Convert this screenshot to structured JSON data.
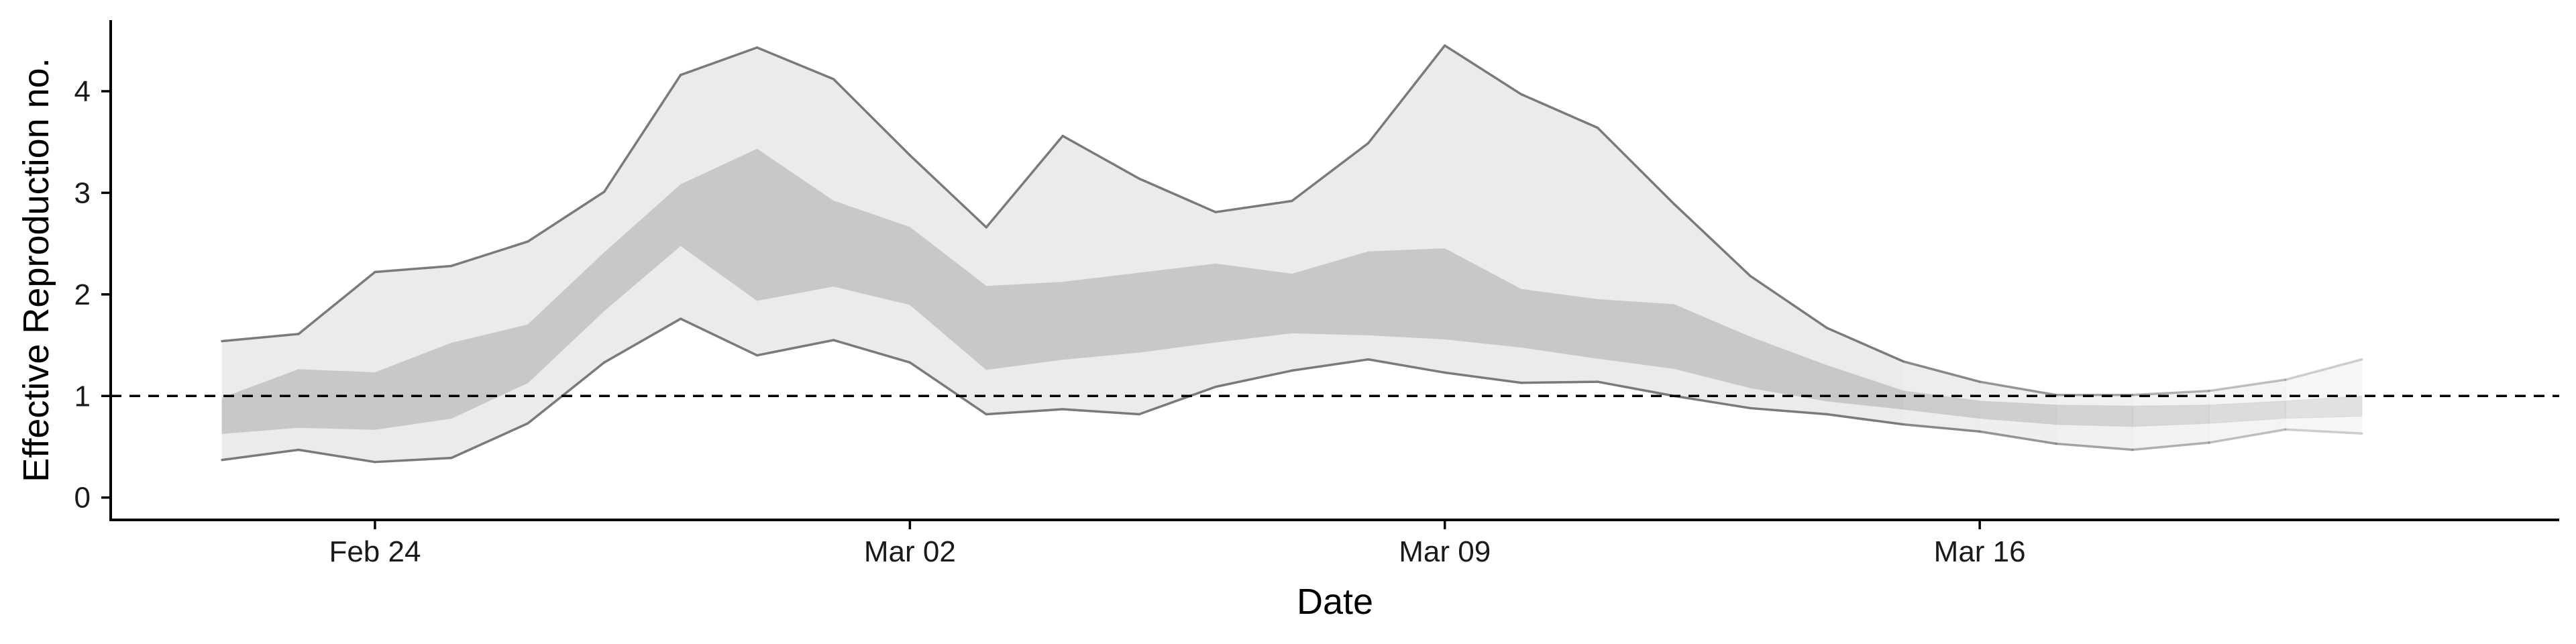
{
  "chart_data": {
    "type": "area",
    "xlabel": "Date",
    "ylabel": "Effective Reproduction no.",
    "x_ticks": [
      "Feb 24",
      "Mar 02",
      "Mar 09",
      "Mar 16"
    ],
    "y_ticks": [
      0,
      1,
      2,
      3,
      4
    ],
    "ylim": [
      -0.22,
      4.7
    ],
    "xlim": [
      "2020-02-20T13:00",
      "2020-03-23T14:00"
    ],
    "reference_line": {
      "y": 1,
      "style": "dashed"
    },
    "dates": [
      "2020-02-22",
      "2020-02-23",
      "2020-02-24",
      "2020-02-25",
      "2020-02-26",
      "2020-02-27",
      "2020-02-28",
      "2020-02-29",
      "2020-03-01",
      "2020-03-02",
      "2020-03-03",
      "2020-03-04",
      "2020-03-05",
      "2020-03-06",
      "2020-03-07",
      "2020-03-08",
      "2020-03-09",
      "2020-03-10",
      "2020-03-11",
      "2020-03-12",
      "2020-03-13",
      "2020-03-14",
      "2020-03-15",
      "2020-03-16",
      "2020-03-17",
      "2020-03-18",
      "2020-03-19",
      "2020-03-20",
      "2020-03-21"
    ],
    "series": [
      {
        "band": "outer",
        "lower": [
          0.37,
          0.47,
          0.35,
          0.39,
          0.73,
          1.33,
          1.76,
          1.4,
          1.55,
          1.33,
          0.82,
          0.87,
          0.82,
          1.09,
          1.25,
          1.36,
          1.23,
          1.13,
          1.14,
          1.0,
          0.88,
          0.82,
          0.72,
          0.65,
          0.53,
          0.47,
          0.54,
          0.67,
          0.63
        ],
        "upper": [
          1.54,
          1.61,
          2.22,
          2.28,
          2.52,
          3.01,
          4.16,
          4.43,
          4.12,
          3.37,
          2.66,
          3.56,
          3.14,
          2.81,
          2.92,
          3.49,
          4.45,
          3.97,
          3.64,
          2.89,
          2.18,
          1.67,
          1.34,
          1.14,
          1.01,
          1.01,
          1.05,
          1.16,
          1.36
        ]
      },
      {
        "band": "inner",
        "lower": [
          0.63,
          0.69,
          0.67,
          0.78,
          1.13,
          1.84,
          2.48,
          1.94,
          2.08,
          1.9,
          1.26,
          1.36,
          1.43,
          1.53,
          1.62,
          1.6,
          1.56,
          1.48,
          1.37,
          1.27,
          1.08,
          0.95,
          0.87,
          0.78,
          0.72,
          0.7,
          0.73,
          0.78,
          0.8
        ],
        "upper": [
          0.98,
          1.26,
          1.23,
          1.52,
          1.7,
          2.41,
          3.08,
          3.43,
          2.92,
          2.66,
          2.08,
          2.12,
          2.21,
          2.3,
          2.2,
          2.42,
          2.45,
          2.05,
          1.95,
          1.9,
          1.58,
          1.3,
          1.05,
          0.95,
          0.91,
          0.9,
          0.91,
          0.95,
          1.0
        ]
      }
    ],
    "colors": {
      "outer_band": "#ebebeb",
      "inner_band": "#c8c8c8",
      "outer_line": "#7a7a7a",
      "axis": "#000000",
      "reference": "#000000"
    },
    "legend": "none",
    "grid": false
  }
}
